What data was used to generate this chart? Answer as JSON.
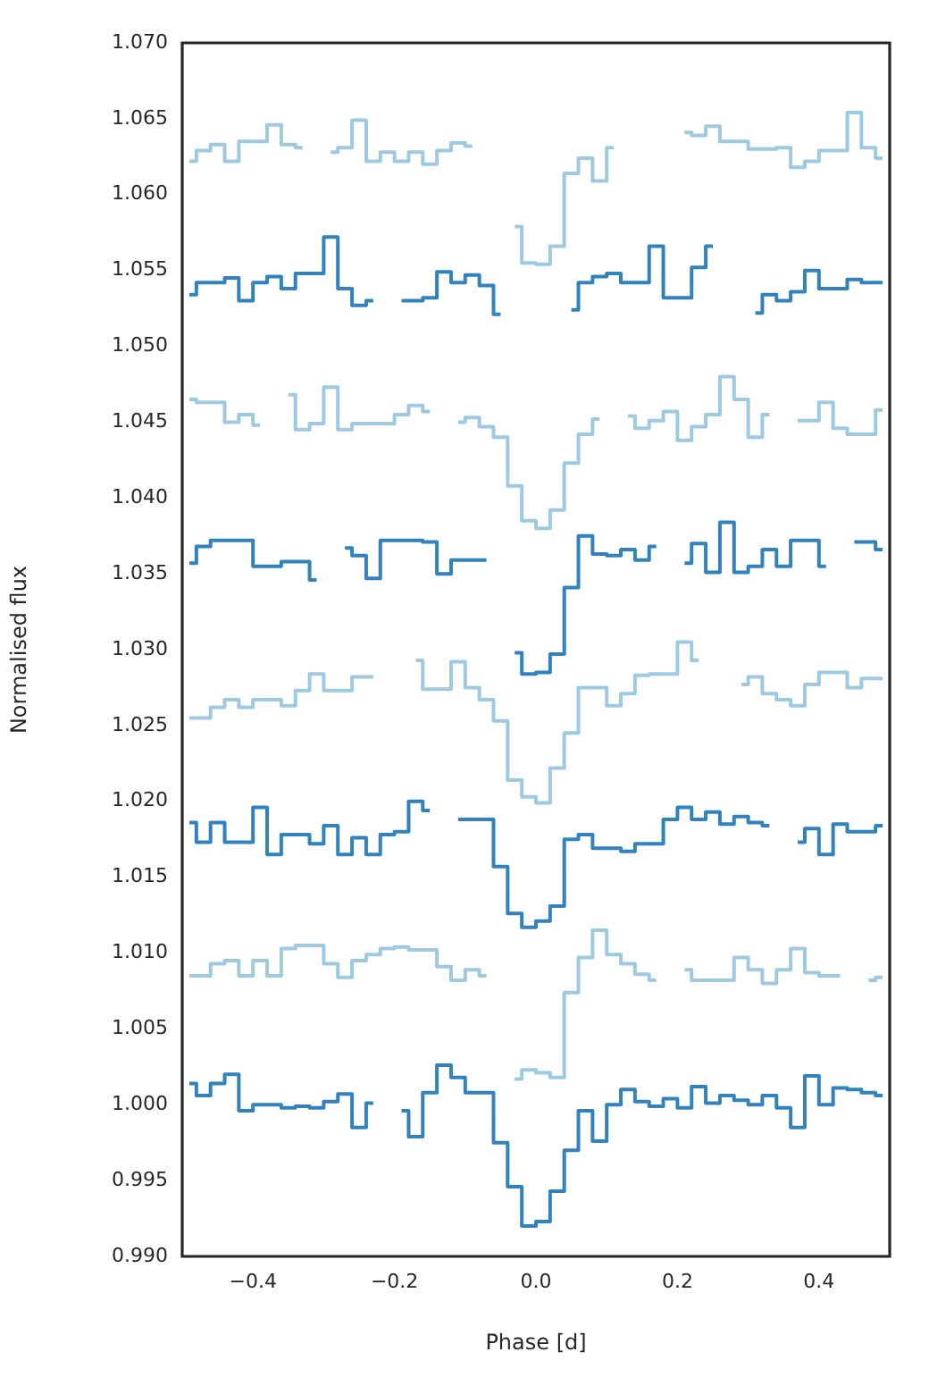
{
  "chart_data": {
    "type": "step",
    "xlabel": "Phase [d]",
    "ylabel": "Normalised flux",
    "x": [
      -0.49,
      -0.47,
      -0.45,
      -0.43,
      -0.41,
      -0.39,
      -0.37,
      -0.35,
      -0.33,
      -0.31,
      -0.29,
      -0.27,
      -0.25,
      -0.23,
      -0.21,
      -0.19,
      -0.17,
      -0.15,
      -0.13,
      -0.11,
      -0.09,
      -0.07,
      -0.05,
      -0.03,
      -0.01,
      0.01,
      0.03,
      0.05,
      0.07,
      0.09,
      0.11,
      0.13,
      0.15,
      0.17,
      0.19,
      0.21,
      0.23,
      0.25,
      0.27,
      0.29,
      0.31,
      0.33,
      0.35,
      0.37,
      0.39,
      0.41,
      0.43,
      0.45,
      0.47,
      0.49
    ],
    "xlim": [
      -0.5,
      0.5
    ],
    "xticks": [
      {
        "value": -0.4,
        "label": "−0.4"
      },
      {
        "value": -0.2,
        "label": "−0.2"
      },
      {
        "value": 0,
        "label": "0.0"
      },
      {
        "value": 0.2,
        "label": "0.2"
      },
      {
        "value": 0.4,
        "label": "0.4"
      }
    ],
    "ylim": [
      0.99,
      1.07
    ],
    "yticks": [
      {
        "value": 0.99,
        "label": "0.990"
      },
      {
        "value": 0.995,
        "label": "0.995"
      },
      {
        "value": 1,
        "label": "1.000"
      },
      {
        "value": 1.005,
        "label": "1.005"
      },
      {
        "value": 1.01,
        "label": "1.010"
      },
      {
        "value": 1.015,
        "label": "1.015"
      },
      {
        "value": 1.02,
        "label": "1.020"
      },
      {
        "value": 1.025,
        "label": "1.025"
      },
      {
        "value": 1.03,
        "label": "1.030"
      },
      {
        "value": 1.035,
        "label": "1.035"
      },
      {
        "value": 1.04,
        "label": "1.040"
      },
      {
        "value": 1.045,
        "label": "1.045"
      },
      {
        "value": 1.05,
        "label": "1.050"
      },
      {
        "value": 1.055,
        "label": "1.055"
      },
      {
        "value": 1.06,
        "label": "1.060"
      },
      {
        "value": 1.065,
        "label": "1.065"
      },
      {
        "value": 1.07,
        "label": "1.070"
      }
    ],
    "grid": false,
    "legend": false,
    "marker": "none",
    "line_style": "solid",
    "series": [
      {
        "color": "#3182bd",
        "values": [
          1.0014,
          1.0006,
          1.0014,
          1.002,
          0.9996,
          1.0,
          1.0,
          0.9998,
          0.9999,
          0.9998,
          1.0002,
          1.0007,
          0.9985,
          1.0001,
          null,
          0.9996,
          0.9979,
          1.0008,
          1.0026,
          1.0018,
          1.0008,
          1.0008,
          0.9975,
          0.9946,
          0.992,
          0.9923,
          0.9943,
          0.997,
          0.9996,
          0.9976,
          1.0,
          1.001,
          1.0002,
          0.9999,
          1.0004,
          0.9998,
          1.0012,
          1.0001,
          1.0006,
          1.0003,
          1.0,
          1.0006,
          0.9998,
          0.9985,
          1.0019,
          1.0,
          1.0011,
          1.001,
          1.0008,
          1.0006
        ]
      },
      {
        "color": "#9ecae1",
        "values": [
          1.0085,
          1.0085,
          1.0093,
          1.0095,
          1.0085,
          1.0095,
          1.0085,
          1.0103,
          1.0105,
          1.0105,
          1.0093,
          1.0084,
          1.0095,
          1.0099,
          1.0103,
          1.0104,
          1.0102,
          1.0102,
          1.0091,
          1.0082,
          1.0089,
          1.0085,
          null,
          1.0017,
          1.0023,
          1.0021,
          1.0018,
          1.0074,
          1.0097,
          1.0115,
          1.0099,
          1.0093,
          1.0086,
          1.0082,
          null,
          1.0089,
          1.0082,
          1.0082,
          1.0082,
          1.0097,
          1.0089,
          1.008,
          1.0089,
          1.0103,
          1.0087,
          1.0085,
          1.0085,
          null,
          1.0082,
          1.0084
        ]
      },
      {
        "color": "#3182bd",
        "values": [
          1.0186,
          1.0173,
          1.0186,
          1.0173,
          1.0173,
          1.0196,
          1.0165,
          1.0178,
          1.0178,
          1.0172,
          1.0184,
          1.0165,
          1.0176,
          1.0165,
          1.0178,
          1.018,
          1.02,
          1.0194,
          null,
          1.0188,
          1.0188,
          1.0188,
          1.0157,
          1.0126,
          1.0117,
          1.0121,
          1.0131,
          1.0175,
          1.0178,
          1.0169,
          1.0169,
          1.0167,
          1.0172,
          1.0172,
          1.0188,
          1.0196,
          1.0188,
          1.0193,
          1.0185,
          1.019,
          1.0186,
          1.0184,
          null,
          1.0173,
          1.0182,
          1.0165,
          1.0185,
          1.018,
          1.018,
          1.0184
        ]
      },
      {
        "color": "#9ecae1",
        "values": [
          1.0255,
          1.0255,
          1.0262,
          1.0267,
          1.0262,
          1.0267,
          1.0267,
          1.0263,
          1.0273,
          1.0284,
          1.0273,
          1.0273,
          1.0282,
          1.0282,
          null,
          null,
          1.0293,
          1.0274,
          1.0274,
          1.0292,
          1.0275,
          1.0267,
          1.0253,
          1.0214,
          1.0203,
          1.0199,
          1.0222,
          1.0245,
          1.0275,
          1.0275,
          1.0263,
          1.0271,
          1.0283,
          1.0284,
          1.0284,
          1.0305,
          1.0293,
          null,
          null,
          1.0277,
          1.0282,
          1.0271,
          1.0267,
          1.0263,
          1.0277,
          1.0285,
          1.0285,
          1.0275,
          1.0281,
          1.0281
        ]
      },
      {
        "color": "#3182bd",
        "values": [
          1.0357,
          1.0368,
          1.0372,
          1.0372,
          1.0372,
          1.0355,
          1.0355,
          1.0358,
          1.0358,
          1.0346,
          null,
          1.0367,
          1.0362,
          1.0347,
          1.0372,
          1.0372,
          1.0372,
          1.0371,
          1.035,
          1.0359,
          1.0359,
          1.0359,
          null,
          1.0298,
          1.0284,
          1.0285,
          1.0297,
          1.0341,
          1.0375,
          1.0363,
          1.0362,
          1.0366,
          1.0359,
          1.0368,
          null,
          1.0357,
          1.037,
          1.0351,
          1.0384,
          1.0351,
          1.0355,
          1.0366,
          1.0355,
          1.0372,
          1.0372,
          1.0355,
          null,
          1.0371,
          1.0371,
          1.0366
        ]
      },
      {
        "color": "#9ecae1",
        "values": [
          1.0465,
          1.0463,
          1.0463,
          1.045,
          1.0455,
          1.0448,
          null,
          1.0468,
          1.0445,
          1.0449,
          1.0473,
          1.0445,
          1.0449,
          1.0449,
          1.0449,
          1.0455,
          1.0461,
          1.0457,
          null,
          1.045,
          1.0453,
          1.0447,
          1.044,
          1.0408,
          1.0385,
          1.038,
          1.0392,
          1.0423,
          1.0442,
          1.0452,
          null,
          1.0454,
          1.0446,
          1.0451,
          1.0457,
          1.0438,
          1.0447,
          1.0455,
          1.048,
          1.0465,
          1.044,
          1.0455,
          null,
          1.0451,
          1.0451,
          1.0463,
          1.0446,
          1.0442,
          1.0442,
          1.0458
        ]
      },
      {
        "color": "#3182bd",
        "values": [
          1.0534,
          1.0542,
          1.0542,
          1.0545,
          1.053,
          1.0542,
          1.0546,
          1.0538,
          1.0548,
          1.0548,
          1.0572,
          1.0538,
          1.0527,
          1.053,
          null,
          1.053,
          1.053,
          1.0532,
          1.0549,
          1.0542,
          1.0547,
          1.054,
          1.0521,
          null,
          null,
          null,
          null,
          1.0524,
          1.0542,
          1.0546,
          1.0548,
          1.0542,
          1.0542,
          1.0566,
          1.0532,
          1.0532,
          1.0552,
          1.0566,
          null,
          null,
          1.0522,
          1.0534,
          1.053,
          1.0536,
          1.055,
          1.0538,
          1.0538,
          1.0544,
          1.0542,
          1.0542
        ]
      },
      {
        "color": "#9ecae1",
        "values": [
          1.0622,
          1.0629,
          1.0633,
          1.0622,
          1.0635,
          1.0635,
          1.0646,
          1.0633,
          1.0631,
          null,
          1.0628,
          1.0631,
          1.0649,
          1.0622,
          1.0628,
          1.0622,
          1.0628,
          1.062,
          1.0629,
          1.0634,
          1.0632,
          null,
          null,
          1.0579,
          1.0555,
          1.0554,
          1.0566,
          1.0614,
          1.0624,
          1.0609,
          1.0631,
          null,
          null,
          null,
          null,
          1.0641,
          1.0639,
          1.0645,
          1.0635,
          1.0635,
          1.063,
          1.063,
          1.0631,
          1.0618,
          1.0622,
          1.0629,
          1.0629,
          1.0654,
          1.0631,
          1.0624
        ]
      }
    ]
  }
}
